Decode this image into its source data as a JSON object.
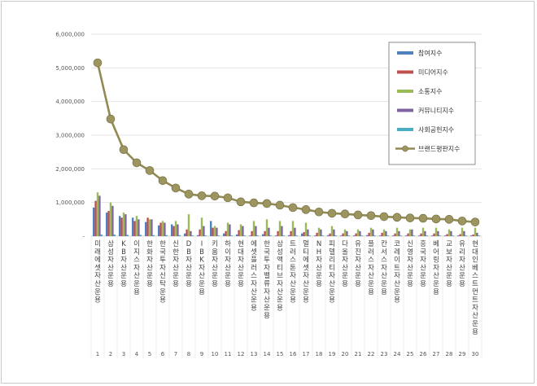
{
  "chart_data": {
    "type": "bar",
    "ylim": [
      0,
      6000000
    ],
    "yticks": [
      "-",
      "1,000,000",
      "2,000,000",
      "3,000,000",
      "4,000,000",
      "5,000,000",
      "6,000,000"
    ],
    "categories": [
      "미래에셋자산운용",
      "삼성자산운용",
      "KB자산운용",
      "이지스자산운용",
      "한화자산운용",
      "한국투자신탁운용",
      "신한자산운용",
      "DB자산운용",
      "IBK자산운용",
      "키움자산운용",
      "하이자산운용",
      "현대자산운용",
      "에셋플러스자산운용",
      "한국투자밸류자산운용",
      "삼성액티브자산운용",
      "트러스톤자산운용",
      "멀티에셋자산운용",
      "NH자산운용",
      "피델리티자산운용",
      "다올자산운용",
      "유진자산운용",
      "플러스자산운용",
      "칸서스자산운용",
      "코레이트자산운용",
      "신영자산운용",
      "흥국자산운용",
      "베어링자산운용",
      "교보자산운용",
      "유리자산운용",
      "현대인베스트먼트자산운용"
    ],
    "x_numbers": [
      "1",
      "2",
      "3",
      "4",
      "5",
      "6",
      "7",
      "8",
      "9",
      "10",
      "11",
      "12",
      "13",
      "14",
      "15",
      "16",
      "17",
      "18",
      "19",
      "20",
      "21",
      "22",
      "23",
      "24",
      "25",
      "26",
      "27",
      "28",
      "29",
      "30"
    ],
    "legend_position": "right",
    "series": [
      {
        "name": "참여지수",
        "kind": "bar",
        "color": "#4f81bd",
        "values": [
          850000,
          700000,
          600000,
          550000,
          420000,
          320000,
          350000,
          80000,
          30000,
          450000,
          80000,
          50000,
          20000,
          60000,
          20000,
          30000,
          80000,
          20000,
          30000,
          20000,
          20000,
          30000,
          20000,
          20000,
          20000,
          20000,
          20000,
          20000,
          20000,
          20000
        ]
      },
      {
        "name": "미디어지수",
        "kind": "bar",
        "color": "#c0504d",
        "values": [
          1050000,
          750000,
          550000,
          450000,
          550000,
          400000,
          300000,
          200000,
          200000,
          250000,
          150000,
          180000,
          150000,
          150000,
          150000,
          150000,
          120000,
          100000,
          80000,
          80000,
          80000,
          100000,
          100000,
          80000,
          80000,
          80000,
          80000,
          60000,
          60000,
          50000
        ]
      },
      {
        "name": "소통지수",
        "kind": "bar",
        "color": "#9bbb59",
        "values": [
          1300000,
          1000000,
          700000,
          600000,
          500000,
          450000,
          450000,
          650000,
          550000,
          300000,
          400000,
          350000,
          450000,
          500000,
          450000,
          450000,
          400000,
          250000,
          300000,
          200000,
          200000,
          250000,
          200000,
          250000,
          200000,
          250000,
          250000,
          200000,
          250000,
          250000
        ]
      },
      {
        "name": "커뮤니티지수",
        "kind": "bar",
        "color": "#8064a2",
        "values": [
          1200000,
          900000,
          650000,
          500000,
          500000,
          400000,
          350000,
          150000,
          300000,
          250000,
          350000,
          300000,
          300000,
          250000,
          300000,
          250000,
          200000,
          200000,
          200000,
          150000,
          150000,
          200000,
          150000,
          150000,
          200000,
          150000,
          150000,
          150000,
          150000,
          100000
        ]
      },
      {
        "name": "사회공헌지수",
        "kind": "bar",
        "color": "#4bacc6",
        "values": [
          50000,
          50000,
          40000,
          40000,
          30000,
          30000,
          30000,
          20000,
          20000,
          20000,
          20000,
          20000,
          20000,
          20000,
          20000,
          20000,
          20000,
          20000,
          20000,
          20000,
          20000,
          20000,
          20000,
          20000,
          20000,
          20000,
          20000,
          20000,
          20000,
          20000
        ]
      },
      {
        "name": "브랜드평판지수",
        "kind": "line",
        "color": "#938953",
        "marker_color": "#9d9560",
        "values": [
          5150000,
          3480000,
          2570000,
          2180000,
          1950000,
          1650000,
          1430000,
          1250000,
          1200000,
          1190000,
          1140000,
          1020000,
          990000,
          970000,
          920000,
          850000,
          790000,
          720000,
          680000,
          660000,
          630000,
          610000,
          580000,
          560000,
          540000,
          530000,
          510000,
          500000,
          450000,
          420000
        ]
      }
    ]
  }
}
